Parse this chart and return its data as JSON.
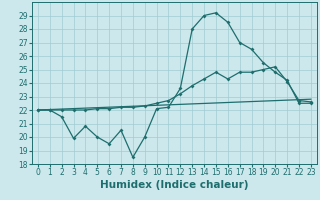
{
  "xlabel": "Humidex (Indice chaleur)",
  "xlim": [
    -0.5,
    23.5
  ],
  "ylim": [
    18,
    30
  ],
  "yticks": [
    18,
    19,
    20,
    21,
    22,
    23,
    24,
    25,
    26,
    27,
    28,
    29
  ],
  "xticks": [
    0,
    1,
    2,
    3,
    4,
    5,
    6,
    7,
    8,
    9,
    10,
    11,
    12,
    13,
    14,
    15,
    16,
    17,
    18,
    19,
    20,
    21,
    22,
    23
  ],
  "background_color": "#cce8ec",
  "grid_color": "#a0ccd2",
  "line_color": "#1e6e6e",
  "line1_x": [
    0,
    1,
    2,
    3,
    4,
    5,
    6,
    7,
    8,
    9,
    10,
    11,
    12,
    13,
    14,
    15,
    16,
    17,
    18,
    19,
    20,
    21,
    22,
    23
  ],
  "line1_y": [
    22.0,
    22.0,
    21.5,
    19.9,
    20.8,
    20.0,
    19.5,
    20.5,
    18.5,
    20.0,
    22.1,
    22.2,
    23.6,
    28.0,
    29.0,
    29.2,
    28.5,
    27.0,
    26.5,
    25.5,
    24.8,
    24.2,
    22.5,
    22.5
  ],
  "line2_x": [
    0,
    1,
    2,
    3,
    4,
    5,
    6,
    7,
    8,
    9,
    10,
    11,
    12,
    13,
    14,
    15,
    16,
    17,
    18,
    19,
    20,
    21,
    22,
    23
  ],
  "line2_y": [
    22.0,
    22.0,
    22.0,
    22.0,
    22.0,
    22.1,
    22.1,
    22.2,
    22.2,
    22.3,
    22.5,
    22.7,
    23.2,
    23.8,
    24.3,
    24.8,
    24.3,
    24.8,
    24.8,
    25.0,
    25.2,
    24.1,
    22.7,
    22.6
  ],
  "line3_x": [
    0,
    23
  ],
  "line3_y": [
    22.0,
    22.8
  ],
  "tick_fontsize": 5.5,
  "xlabel_fontsize": 7.5
}
